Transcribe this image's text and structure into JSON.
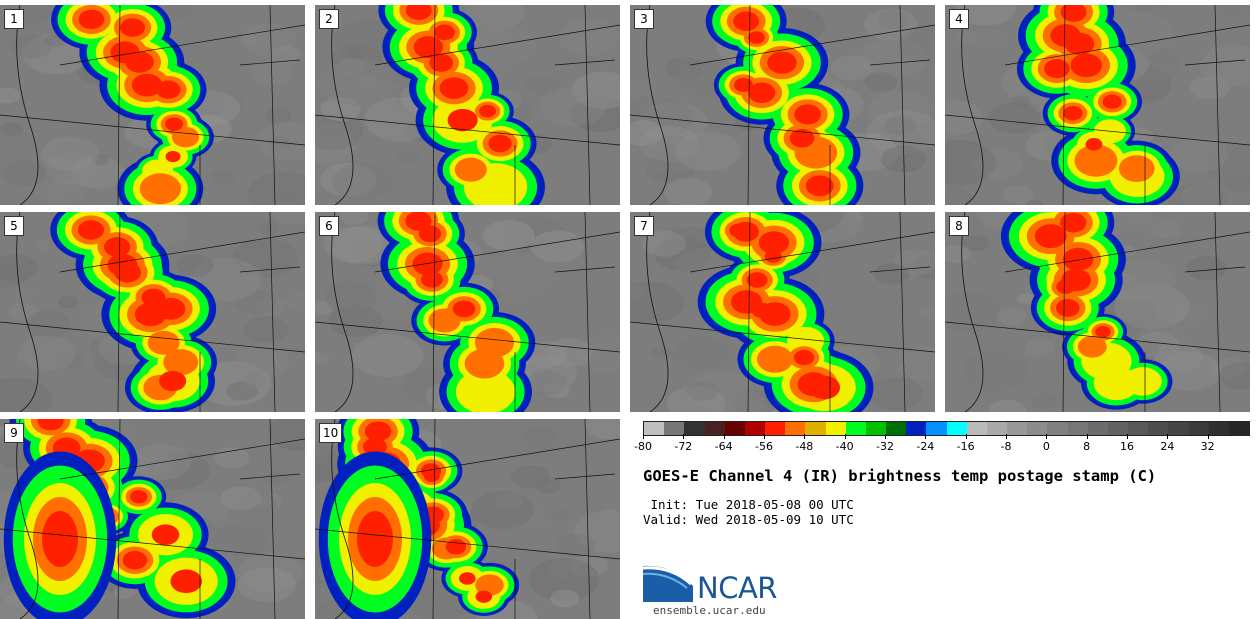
{
  "panels": [
    {
      "label": "1"
    },
    {
      "label": "2"
    },
    {
      "label": "3"
    },
    {
      "label": "4"
    },
    {
      "label": "5"
    },
    {
      "label": "6"
    },
    {
      "label": "7"
    },
    {
      "label": "8"
    },
    {
      "label": "9"
    },
    {
      "label": "10"
    }
  ],
  "colorbar": {
    "tick_labels": [
      "-80",
      "-72",
      "-64",
      "-56",
      "-48",
      "-40",
      "-32",
      "-24",
      "-16",
      "-8",
      "0",
      "8",
      "16",
      "24",
      "32"
    ],
    "colors": [
      "#c0c0c0",
      "#777777",
      "#333333",
      "#4a2020",
      "#6a0000",
      "#b00000",
      "#ff2000",
      "#ff7000",
      "#e0b000",
      "#f0f000",
      "#00ff20",
      "#00c000",
      "#007000",
      "#0020c0",
      "#0090ff",
      "#00ffff",
      "#bbbbbb",
      "#aaaaaa",
      "#999999",
      "#8c8c8c",
      "#808080",
      "#767676",
      "#6c6c6c",
      "#626262",
      "#585858",
      "#4e4e4e",
      "#444444",
      "#3a3a3a",
      "#303030",
      "#262626"
    ]
  },
  "title": "GOES-E Channel 4 (IR) brightness temp postage stamp (C)",
  "init_line": "Init: Tue 2018-05-08 00 UTC",
  "valid_line": "Valid: Wed 2018-05-09 10 UTC",
  "logo_text": "NCAR",
  "site": "ensemble.ucar.edu"
}
